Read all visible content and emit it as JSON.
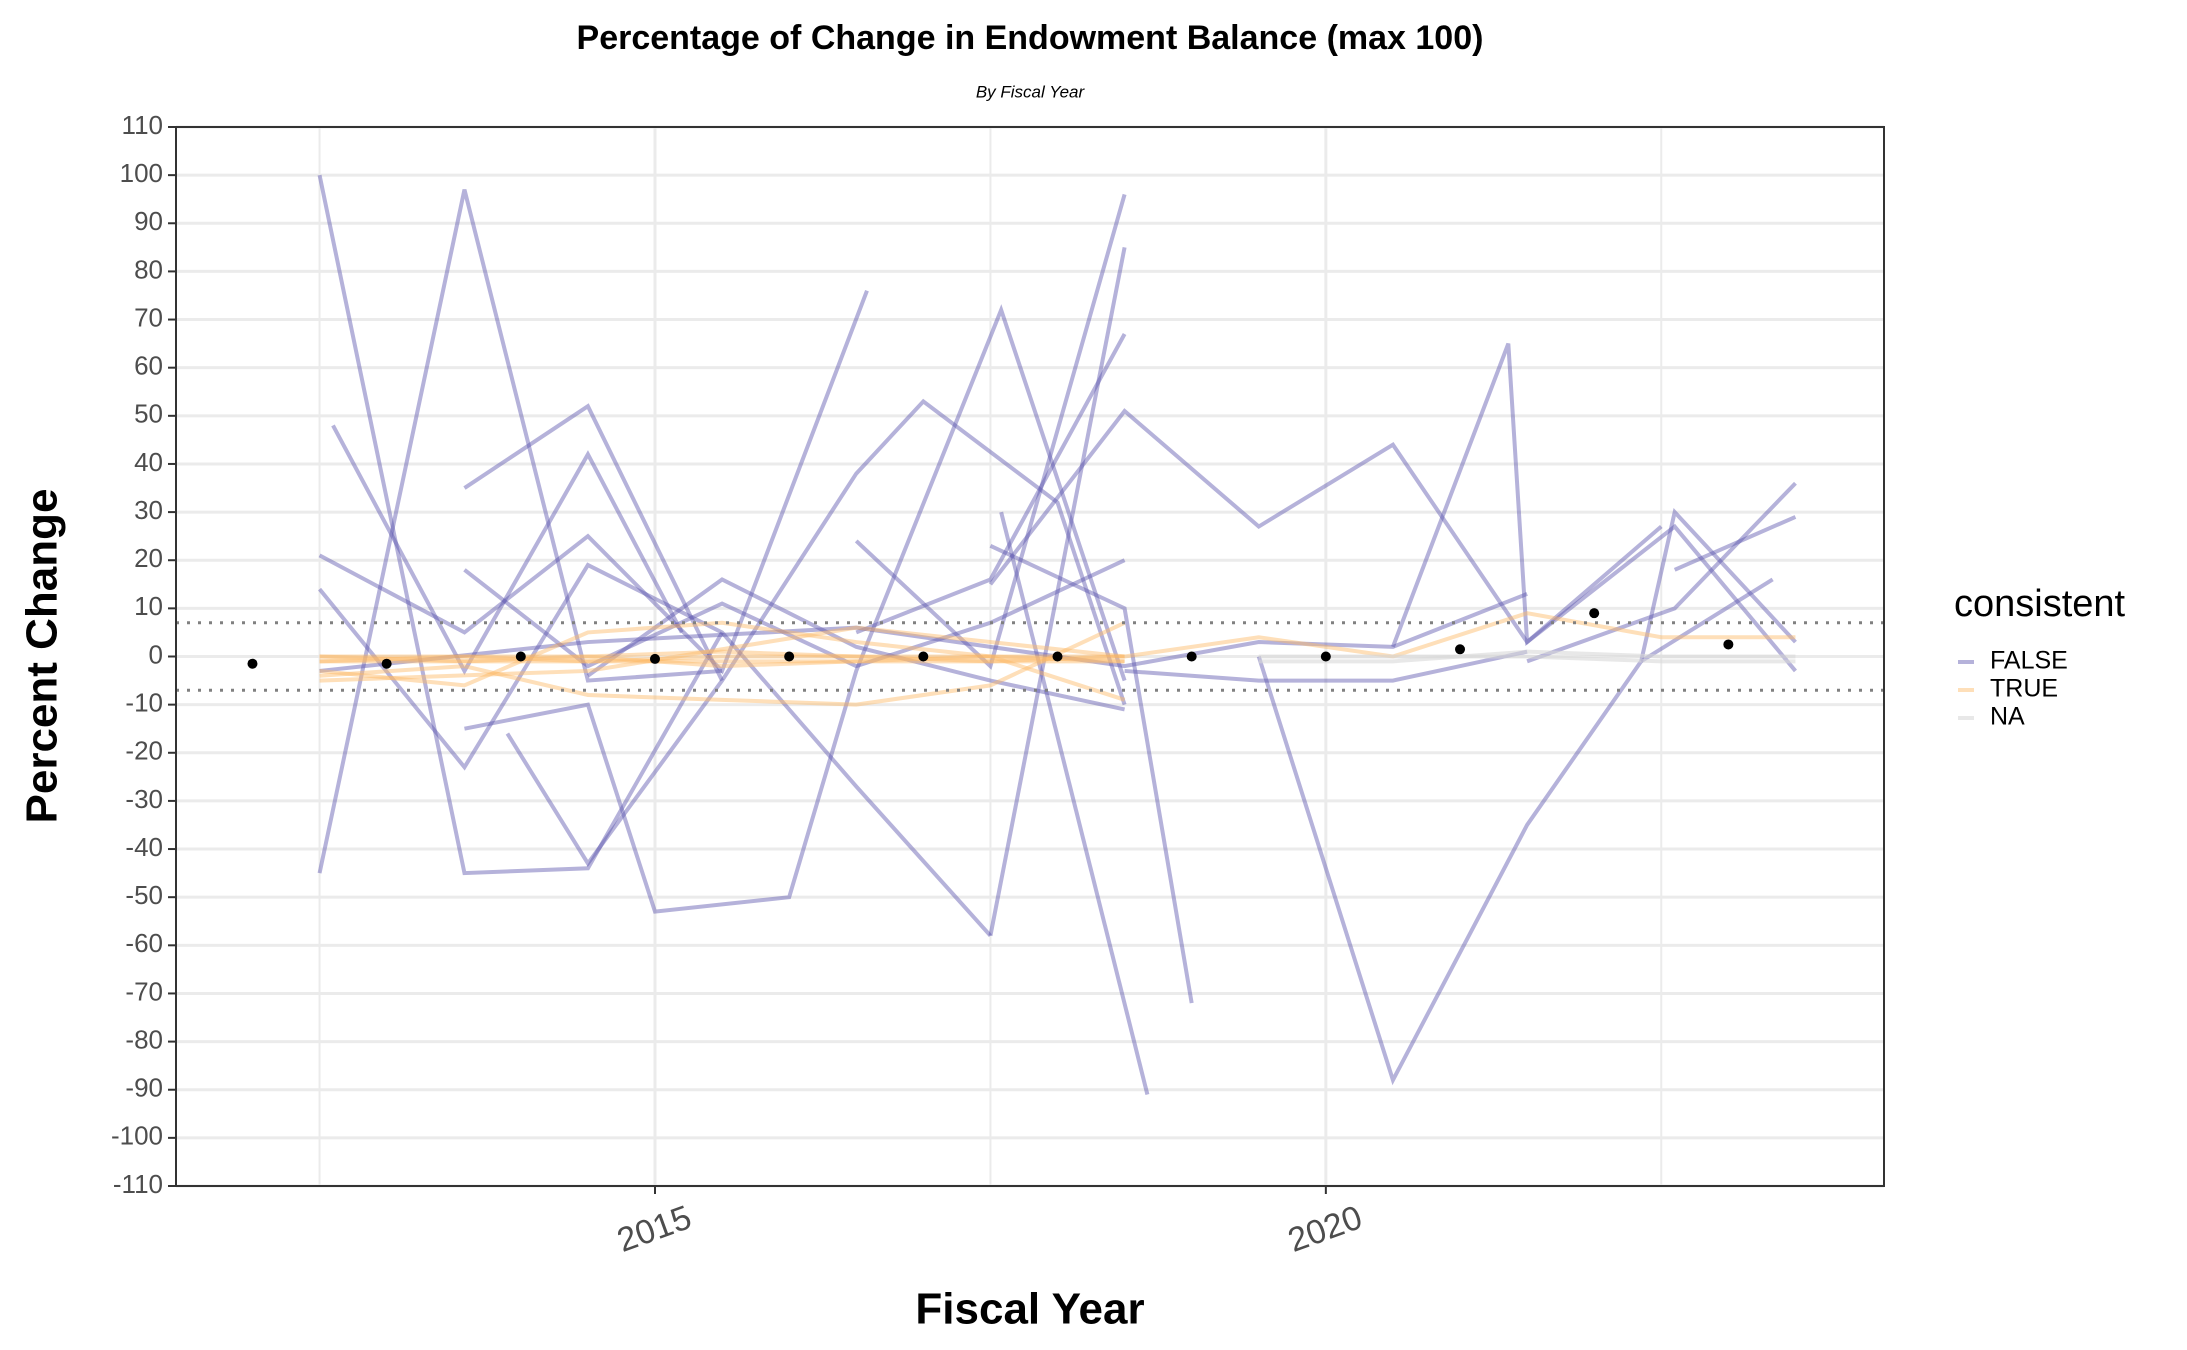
{
  "chart_data": {
    "type": "line",
    "title": "Percentage of Change in Endowment Balance (max 100)",
    "subtitle": "By Fiscal Year",
    "x_label": "Fiscal Year",
    "y_label": "Percent Change",
    "xlim": [
      2011.43,
      2024.16
    ],
    "ylim": [
      -110,
      110
    ],
    "xticks": [
      2015,
      2020
    ],
    "xgrid_minor": [
      2012.5,
      2017.5,
      2022.5
    ],
    "yticks": [
      -110,
      -100,
      -90,
      -80,
      -70,
      -60,
      -50,
      -40,
      -30,
      -20,
      -10,
      0,
      10,
      20,
      30,
      40,
      50,
      60,
      70,
      80,
      90,
      100,
      110
    ],
    "grid": true,
    "reference_lines": [
      7,
      -7
    ],
    "legend_title": "consistent",
    "legend_position": "right",
    "series": [
      {
        "name": "FALSE",
        "color": "#5c55ad",
        "opacity": 0.45,
        "lines": [
          {
            "x": [
              2012.5,
              2013.58,
              2014.5,
              2015.5
            ],
            "values": [
              100,
              -45,
              -44,
              5
            ]
          },
          {
            "x": [
              2012.5,
              2013.58,
              2014.5,
              2015.5
            ],
            "values": [
              -45,
              97,
              -5,
              -3
            ]
          },
          {
            "x": [
              2012.6,
              2013.58,
              2014.5,
              2015.2
            ],
            "values": [
              48,
              -3,
              42,
              5
            ]
          },
          {
            "x": [
              2013.58,
              2014.5,
              2015.5
            ],
            "values": [
              35,
              52,
              -5
            ]
          },
          {
            "x": [
              2012.5,
              2013.58,
              2014.5,
              2015.5,
              2016.58
            ],
            "values": [
              21,
              5,
              25,
              -3,
              76
            ]
          },
          {
            "x": [
              2012.5,
              2013.58,
              2014.5,
              2015.5,
              2016.5,
              2017.5
            ],
            "values": [
              14,
              -23,
              19,
              5,
              -27,
              -58
            ]
          },
          {
            "x": [
              2013.58,
              2014.5,
              2015.0,
              2016.0,
              2016.5,
              2017.58,
              2018.5
            ],
            "values": [
              -15,
              -10,
              -53,
              -50,
              -3,
              72,
              -5
            ]
          },
          {
            "x": [
              2013.9,
              2014.5,
              2015.5,
              2016.5,
              2017.0,
              2018.0,
              2018.5
            ],
            "values": [
              -16,
              -43,
              -5,
              38,
              53,
              32,
              -10
            ]
          },
          {
            "x": [
              2016.5,
              2017.5,
              2018.5
            ],
            "values": [
              24,
              -2,
              96
            ]
          },
          {
            "x": [
              2017.5,
              2018.5
            ],
            "values": [
              -58,
              85
            ]
          },
          {
            "x": [
              2016.5,
              2017.5,
              2018.5
            ],
            "values": [
              5,
              16,
              67
            ]
          },
          {
            "x": [
              2017.58,
              2018.67
            ],
            "values": [
              30,
              -91
            ]
          },
          {
            "x": [
              2017.5,
              2018.5,
              2019.0
            ],
            "values": [
              23,
              10,
              -72
            ]
          },
          {
            "x": [
              2017.5,
              2018.5,
              2019.5,
              2020.5,
              2021.5,
              2022.5
            ],
            "values": [
              15,
              51,
              27,
              44,
              3,
              27
            ]
          },
          {
            "x": [
              2019.5,
              2020.5,
              2021.5,
              2022.35,
              2022.6,
              2023.5
            ],
            "values": [
              0,
              -88,
              -35,
              -1,
              30,
              3
            ]
          },
          {
            "x": [
              2020.5,
              2021.36,
              2021.5,
              2022.6,
              2023.5
            ],
            "values": [
              2,
              65,
              3,
              27,
              -3
            ]
          },
          {
            "x": [
              2021.5,
              2022.6,
              2023.5
            ],
            "values": [
              -1,
              10,
              36
            ]
          },
          {
            "x": [
              2022.35,
              2023.33
            ],
            "values": [
              -1,
              16
            ]
          },
          {
            "x": [
              2022.6,
              2023.5
            ],
            "values": [
              18,
              29
            ]
          },
          {
            "x": [
              2012.5,
              2014.5,
              2016.5,
              2018.5,
              2019.5,
              2020.5,
              2021.5
            ],
            "values": [
              -3,
              3,
              6,
              -2,
              3,
              2,
              13
            ]
          },
          {
            "x": [
              2013.58,
              2014.5,
              2015.5,
              2016.5,
              2017.5,
              2018.5
            ],
            "values": [
              18,
              -2,
              11,
              -2,
              7,
              20
            ]
          },
          {
            "x": [
              2014.5,
              2015.5,
              2016.5,
              2017.5,
              2018.5
            ],
            "values": [
              -4,
              16,
              2,
              -5,
              -11
            ]
          },
          {
            "x": [
              2018.5,
              2019.5,
              2020.5,
              2021.5
            ],
            "values": [
              -3,
              -5,
              -5,
              1
            ]
          }
        ]
      },
      {
        "name": "TRUE",
        "color": "#fdb863",
        "opacity": 0.45,
        "lines": [
          {
            "x": [
              2012.5,
              2013.58,
              2014.5,
              2015.5,
              2016.5,
              2017.5,
              2018.5
            ],
            "values": [
              -3,
              -6,
              5,
              7,
              3,
              0,
              -9
            ]
          },
          {
            "x": [
              2012.5,
              2013.58,
              2014.5,
              2015.5,
              2016.5,
              2017.5,
              2018.5
            ],
            "values": [
              -4,
              -2,
              -8,
              -9,
              -10,
              -6,
              7
            ]
          },
          {
            "x": [
              2012.5,
              2014.5,
              2016.5,
              2018.5,
              2019.5,
              2020.5,
              2021.5,
              2022.5,
              2023.5
            ],
            "values": [
              -5,
              -3,
              6,
              0,
              4,
              0,
              9,
              4,
              4
            ]
          },
          {
            "x": [
              2012.5,
              2013.58,
              2014.5,
              2015.5,
              2016.5,
              2017.5,
              2018.5
            ],
            "values": [
              -1,
              -1,
              -1,
              -1,
              -1,
              -1,
              -1
            ]
          },
          {
            "x": [
              2012.5,
              2013.58,
              2014.5,
              2015.5,
              2016.5,
              2017.5,
              2018.5
            ],
            "values": [
              0,
              0,
              -1,
              0,
              0,
              0,
              -1
            ]
          },
          {
            "x": [
              2012.5,
              2013.58,
              2014.5,
              2015.5,
              2016.5,
              2017.5,
              2018.5
            ],
            "values": [
              -1,
              0,
              0,
              -2,
              -1,
              0,
              0
            ]
          },
          {
            "x": [
              2012.5,
              2013.58,
              2014.5,
              2015.5,
              2016.5,
              2017.5,
              2018.5
            ],
            "values": [
              0,
              -1,
              0,
              1,
              0,
              -1,
              0
            ]
          }
        ]
      },
      {
        "name": "NA",
        "color": "#d9d9d9",
        "opacity": 0.6,
        "lines": [
          {
            "x": [
              2019.5,
              2020.5,
              2021.5,
              2022.5,
              2023.5
            ],
            "values": [
              0,
              0,
              0,
              -1,
              -1
            ]
          },
          {
            "x": [
              2019.5,
              2020.5,
              2021.5,
              2022.5,
              2023.5
            ],
            "values": [
              -1,
              -1,
              1,
              0,
              0
            ]
          }
        ]
      }
    ],
    "points": {
      "color": "#000000",
      "x": [
        2012,
        2013,
        2014,
        2015,
        2016,
        2017,
        2018,
        2019,
        2020,
        2021,
        2022,
        2023
      ],
      "values": [
        -1.5,
        -1.5,
        0,
        -0.5,
        0,
        0,
        0,
        0,
        0,
        1.5,
        9,
        2.5
      ]
    }
  }
}
